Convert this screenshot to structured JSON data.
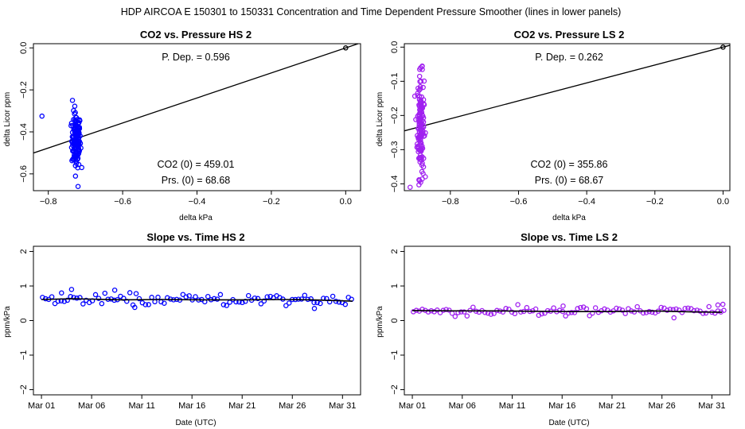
{
  "main_title": "HDP    AIRCOA E    150301 to 150331    Concentration and Time Dependent Pressure Smoother (lines in lower panels)",
  "chart_data": [
    {
      "id": "hs_pressure",
      "type": "scatter",
      "title": "CO2 vs. Pressure HS 2",
      "xlabel": "delta kPa",
      "ylabel": "delta Licor ppm",
      "xlim": [
        -0.84,
        0.04
      ],
      "ylim": [
        -0.68,
        0.02
      ],
      "xticks": [
        -0.8,
        -0.6,
        -0.4,
        -0.2,
        0.0
      ],
      "xtick_labels": [
        "−0.8",
        "−0.6",
        "−0.4",
        "−0.2",
        "0.0"
      ],
      "yticks": [
        -0.6,
        -0.4,
        -0.2,
        0.0
      ],
      "ytick_labels": [
        "−0.6",
        "−0.4",
        "−0.2",
        "0.0"
      ],
      "marker_color": "#0000ff",
      "fit_slope": 0.596,
      "origin_point": [
        0.0,
        0.0
      ],
      "annotations": {
        "p_dep": "P. Dep. =  0.596",
        "co2_0": "CO2 (0) =  459.01",
        "prs_0": "Prs. (0) =  68.68"
      },
      "cluster": {
        "x_center": -0.725,
        "x_sd": 0.006,
        "y_mean": -0.44,
        "y_sd": 0.065,
        "n": 150
      },
      "outliers": [
        [
          -0.817,
          -0.325
        ],
        [
          -0.735,
          -0.25
        ],
        [
          -0.72,
          -0.66
        ],
        [
          -0.71,
          -0.57
        ]
      ]
    },
    {
      "id": "ls_pressure",
      "type": "scatter",
      "title": "CO2 vs. Pressure LS 2",
      "xlabel": "delta kPa",
      "ylabel": "delta Licor ppm",
      "xlim": [
        -0.935,
        0.02
      ],
      "ylim": [
        -0.42,
        0.01
      ],
      "xticks": [
        -0.8,
        -0.6,
        -0.4,
        -0.2,
        0.0
      ],
      "xtick_labels": [
        "−0.8",
        "−0.6",
        "−0.4",
        "−0.2",
        "0.0"
      ],
      "yticks": [
        -0.4,
        -0.3,
        -0.2,
        -0.1,
        0.0
      ],
      "ytick_labels": [
        "−0.4",
        "−0.3",
        "−0.2",
        "−0.1",
        "0.0"
      ],
      "marker_color": "#a020f0",
      "fit_slope": 0.262,
      "origin_point": [
        0.0,
        0.0
      ],
      "annotations": {
        "p_dep": "P. Dep. =  0.262",
        "co2_0": "CO2 (0) =  355.86",
        "prs_0": "Prs. (0) =  68.67"
      },
      "cluster": {
        "x_center": -0.887,
        "x_sd": 0.005,
        "y_mean": -0.23,
        "y_sd": 0.075,
        "n": 150
      },
      "outliers": [
        [
          -0.918,
          -0.41
        ],
        [
          -0.89,
          -0.065
        ],
        [
          -0.88,
          -0.37
        ]
      ]
    },
    {
      "id": "hs_slope",
      "type": "scatter",
      "title": "Slope vs. Time HS 2",
      "xlabel": "Date (UTC)",
      "ylabel": "ppm/kPa",
      "xlim": [
        -0.8,
        31.8
      ],
      "ylim": [
        -2.15,
        2.15
      ],
      "xticks": [
        0,
        5,
        10,
        15,
        20,
        25,
        30
      ],
      "xtick_labels": [
        "Mar 01",
        "Mar 06",
        "Mar 11",
        "Mar 16",
        "Mar 21",
        "Mar 26",
        "Mar 31"
      ],
      "yticks": [
        -2,
        -1,
        0,
        1,
        2
      ],
      "ytick_labels": [
        "−2",
        "−1",
        "0",
        "1",
        "2"
      ],
      "marker_color": "#0000ff",
      "smoother": [
        [
          0,
          0.61
        ],
        [
          3,
          0.63
        ],
        [
          5,
          0.62
        ],
        [
          8,
          0.6
        ],
        [
          12,
          0.61
        ],
        [
          16,
          0.6
        ],
        [
          20,
          0.6
        ],
        [
          24,
          0.61
        ],
        [
          27,
          0.6
        ],
        [
          31,
          0.56
        ]
      ],
      "points": {
        "x_start": 0.1,
        "x_end": 30.9,
        "n": 100,
        "base": 0.6,
        "spread": 0.14
      },
      "outliers": [
        [
          2.0,
          0.8
        ],
        [
          3.0,
          0.9
        ],
        [
          7.3,
          0.88
        ],
        [
          9.3,
          0.38
        ],
        [
          27.2,
          0.35
        ]
      ]
    },
    {
      "id": "ls_slope",
      "type": "scatter",
      "title": "Slope vs. Time LS 2",
      "xlabel": "Date (UTC)",
      "ylabel": "ppm/kPa",
      "xlim": [
        -0.8,
        31.8
      ],
      "ylim": [
        -2.15,
        2.15
      ],
      "xticks": [
        0,
        5,
        10,
        15,
        20,
        25,
        30
      ],
      "xtick_labels": [
        "Mar 01",
        "Mar 06",
        "Mar 11",
        "Mar 16",
        "Mar 21",
        "Mar 26",
        "Mar 31"
      ],
      "yticks": [
        -2,
        -1,
        0,
        1,
        2
      ],
      "ytick_labels": [
        "−2",
        "−1",
        "0",
        "1",
        "2"
      ],
      "marker_color": "#a020f0",
      "smoother": [
        [
          0,
          0.29
        ],
        [
          4,
          0.28
        ],
        [
          8,
          0.28
        ],
        [
          12,
          0.27
        ],
        [
          16,
          0.26
        ],
        [
          20,
          0.26
        ],
        [
          24,
          0.28
        ],
        [
          28,
          0.25
        ],
        [
          31,
          0.24
        ]
      ],
      "points": {
        "x_start": 0.1,
        "x_end": 31.2,
        "n": 105,
        "base": 0.27,
        "spread": 0.12
      },
      "outliers": [
        [
          30.6,
          0.45
        ],
        [
          31.1,
          0.47
        ],
        [
          26.2,
          0.08
        ],
        [
          15.1,
          0.42
        ]
      ]
    }
  ]
}
